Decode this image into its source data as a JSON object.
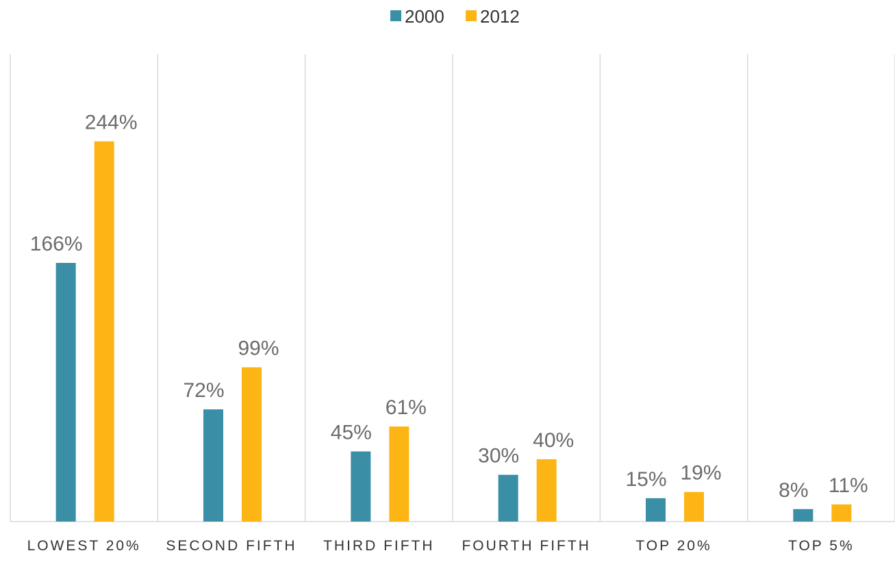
{
  "chart_data": {
    "type": "bar",
    "categories": [
      "LOWEST 20%",
      "SECOND FIFTH",
      "THIRD FIFTH",
      "FOURTH FIFTH",
      "TOP 20%",
      "TOP 5%"
    ],
    "series": [
      {
        "name": "2000",
        "color": "#3a8fa6",
        "values": [
          166,
          72,
          45,
          30,
          15,
          8
        ],
        "value_labels": [
          "166%",
          "72%",
          "45%",
          "30%",
          "15%",
          "8%"
        ]
      },
      {
        "name": "2012",
        "color": "#fdb515",
        "values": [
          244,
          99,
          61,
          40,
          19,
          11
        ],
        "value_labels": [
          "244%",
          "99%",
          "61%",
          "40%",
          "19%",
          "11%"
        ]
      }
    ],
    "ylim": [
      0,
      300
    ],
    "legend": "top"
  }
}
